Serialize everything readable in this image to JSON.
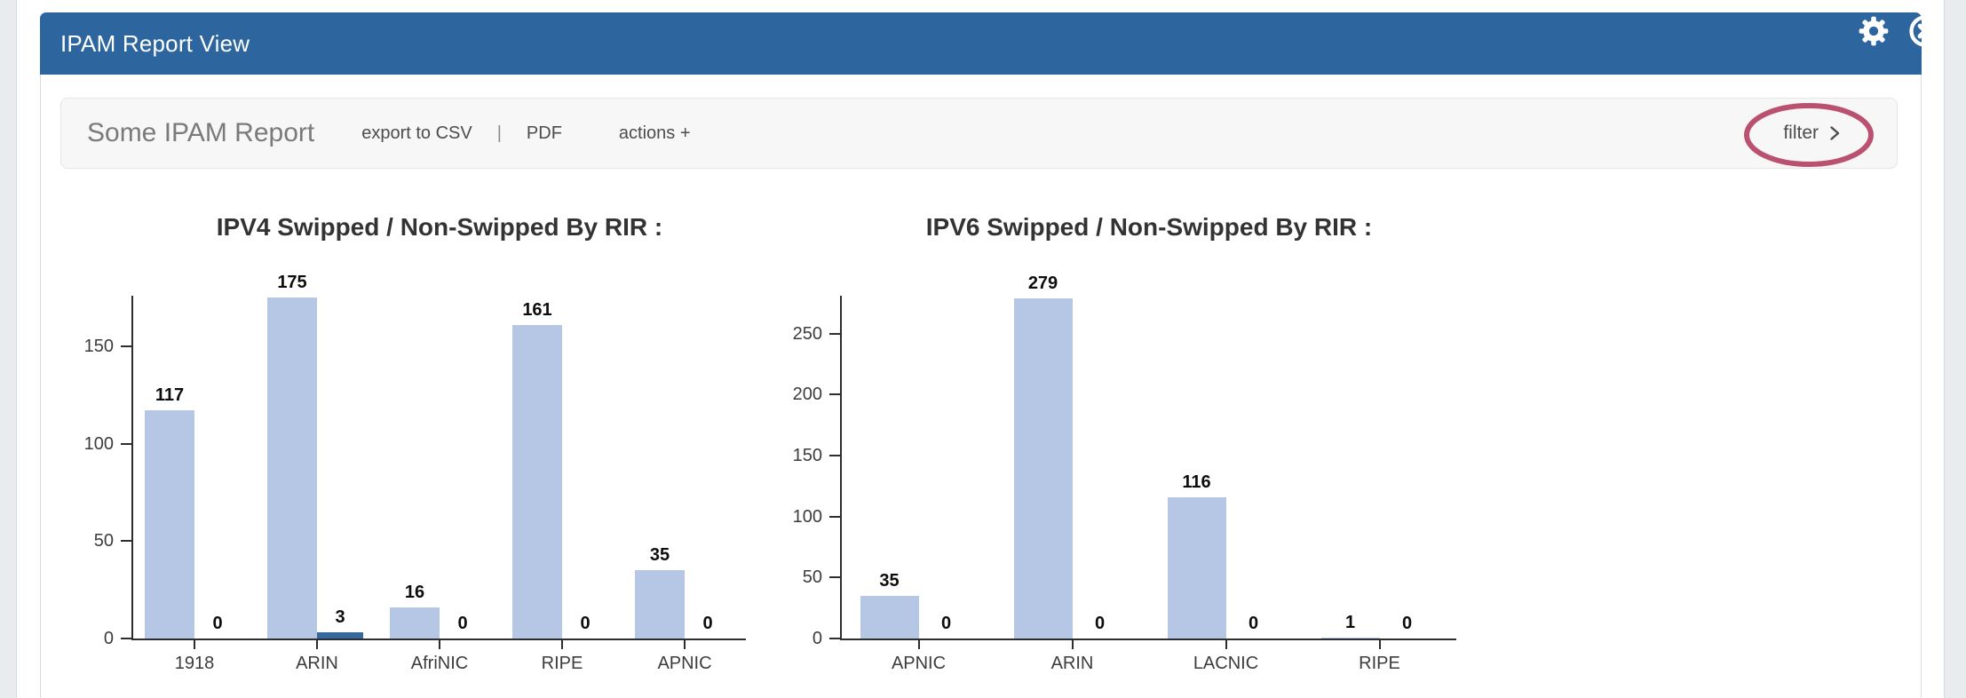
{
  "window": {
    "title": "IPAM Report View"
  },
  "toolbar": {
    "report_title": "Some IPAM Report",
    "export_csv_label": "export to CSV",
    "separator": "|",
    "pdf_label": "PDF",
    "actions_label": "actions +",
    "filter_label": "filter"
  },
  "annotation": {
    "type": "ellipse-highlight",
    "around": "filter-button",
    "color": "#b23a5f"
  },
  "colors": {
    "header_blue": "#2d669f",
    "bar_light_blue": "#b5c7e4",
    "bar_dark_blue": "#36699f",
    "annotation_red": "#b23a5f"
  },
  "chart_data": [
    {
      "type": "bar",
      "title": "IPV4 Swipped / Non-Swipped By RIR :",
      "categories": [
        "1918",
        "ARIN",
        "AfriNIC",
        "RIPE",
        "APNIC"
      ],
      "series": [
        {
          "name": "series-1-light-blue",
          "color": "#b5c7e4",
          "values": [
            117,
            175,
            16,
            161,
            35
          ]
        },
        {
          "name": "series-2-dark-blue",
          "color": "#36699f",
          "values": [
            0,
            3,
            0,
            0,
            0
          ]
        }
      ],
      "yticks": [
        0,
        50,
        100,
        150
      ],
      "ylim": [
        0,
        176
      ],
      "grid": false,
      "legend": "none",
      "value_labels": true
    },
    {
      "type": "bar",
      "title": "IPV6 Swipped / Non-Swipped By RIR :",
      "categories": [
        "APNIC",
        "ARIN",
        "LACNIC",
        "RIPE"
      ],
      "series": [
        {
          "name": "series-1-light-blue",
          "color": "#b5c7e4",
          "values": [
            35,
            279,
            116,
            1
          ]
        },
        {
          "name": "series-2-dark-blue",
          "color": "#36699f",
          "values": [
            0,
            0,
            0,
            0
          ]
        }
      ],
      "yticks": [
        0,
        50,
        100,
        150,
        200,
        250
      ],
      "ylim": [
        0,
        281
      ],
      "grid": false,
      "legend": "none",
      "value_labels": true
    }
  ]
}
